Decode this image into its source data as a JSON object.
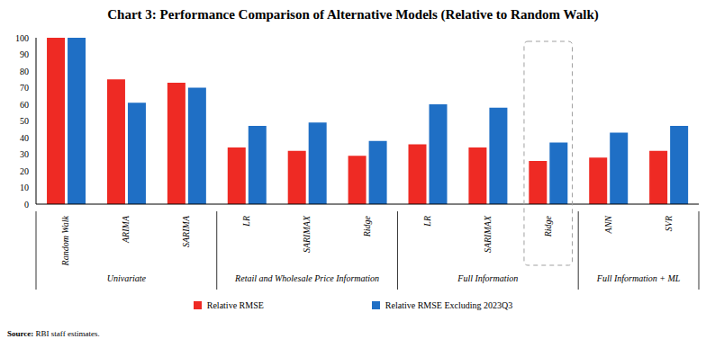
{
  "chart_data": {
    "type": "bar",
    "title": "Chart 3: Performance Comparison of Alternative Models (Relative to Random Walk)",
    "source": "Source: RBI staff estimates.",
    "categories": [
      "Random Walk",
      "ARIMA",
      "SARIMA",
      "LR",
      "SARIMAX",
      "Ridge",
      "LR",
      "SARIMAX",
      "Ridge",
      "ANN",
      "SVR"
    ],
    "category_groups": [
      "Univariate",
      "Univariate",
      "Univariate",
      "Retail and Wholesale Price Information",
      "Retail and Wholesale Price Information",
      "Retail and Wholesale Price Information",
      "Full Information",
      "Full Information",
      "Full Information",
      "Full Information + ML",
      "Full Information + ML"
    ],
    "series": [
      {
        "name": "Relative RMSE",
        "color": "#ee2a24",
        "values": [
          100,
          75,
          73,
          34,
          32,
          29,
          36,
          34,
          26,
          28,
          32
        ]
      },
      {
        "name": "Relative RMSE Excluding 2023Q3",
        "color": "#1f6fc5",
        "values": [
          100,
          61,
          70,
          47,
          49,
          38,
          60,
          58,
          37,
          43,
          47
        ]
      }
    ],
    "ylim": [
      0,
      100
    ],
    "yticks": [
      0,
      10,
      20,
      30,
      40,
      50,
      60,
      70,
      80,
      90,
      100
    ],
    "grid": false,
    "legend": "bottom"
  }
}
